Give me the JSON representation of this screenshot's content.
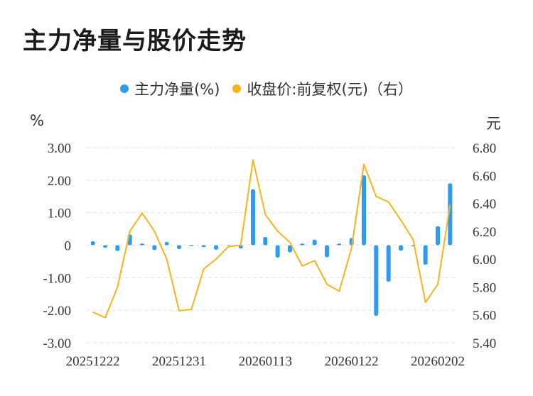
{
  "title": "主力净量与股价走势",
  "legend": {
    "series1": "主力净量(%)",
    "series2": "收盘价:前复权(元)（右）"
  },
  "units": {
    "left": "%",
    "right": "元"
  },
  "colors": {
    "bar": "#2f9bf0",
    "line": "#f5b51b",
    "grid": "#e3e3e3",
    "text": "#333333"
  },
  "chart_data": {
    "type": "bar+line",
    "x_tick_labels": [
      "20251222",
      "20251231",
      "20260113",
      "20260122",
      "20260202"
    ],
    "x_tick_indices": [
      0,
      7,
      14,
      21,
      28
    ],
    "y_left": {
      "ticks": [
        "3.00",
        "2.00",
        "1.00",
        "0",
        "-1.00",
        "-2.00",
        "-3.00"
      ],
      "ylim": [
        -3,
        3
      ]
    },
    "y_right": {
      "ticks": [
        "6.80",
        "6.60",
        "6.40",
        "6.20",
        "6.00",
        "5.80",
        "5.60",
        "5.40"
      ],
      "ylim": [
        5.4,
        6.8
      ]
    },
    "series": [
      {
        "name": "主力净量(%)",
        "kind": "bar",
        "axis": "left",
        "values": [
          0.12,
          -0.08,
          -0.18,
          0.33,
          0.05,
          -0.15,
          0.1,
          -0.12,
          -0.03,
          -0.06,
          -0.14,
          0.0,
          -0.1,
          1.72,
          0.25,
          -0.38,
          -0.22,
          0.05,
          0.17,
          -0.37,
          0.05,
          0.22,
          2.15,
          -2.17,
          -1.12,
          -0.17,
          -0.03,
          -0.6,
          0.58,
          1.9
        ]
      },
      {
        "name": "收盘价:前复权(元)（右）",
        "kind": "line",
        "axis": "right",
        "values": [
          5.62,
          5.58,
          5.8,
          6.2,
          6.33,
          6.2,
          6.0,
          5.63,
          5.64,
          5.93,
          6.0,
          6.09,
          6.1,
          6.71,
          6.32,
          6.2,
          6.12,
          5.95,
          5.99,
          5.82,
          5.77,
          6.08,
          6.68,
          6.45,
          6.41,
          6.28,
          6.14,
          5.69,
          5.82,
          6.39
        ]
      }
    ]
  }
}
